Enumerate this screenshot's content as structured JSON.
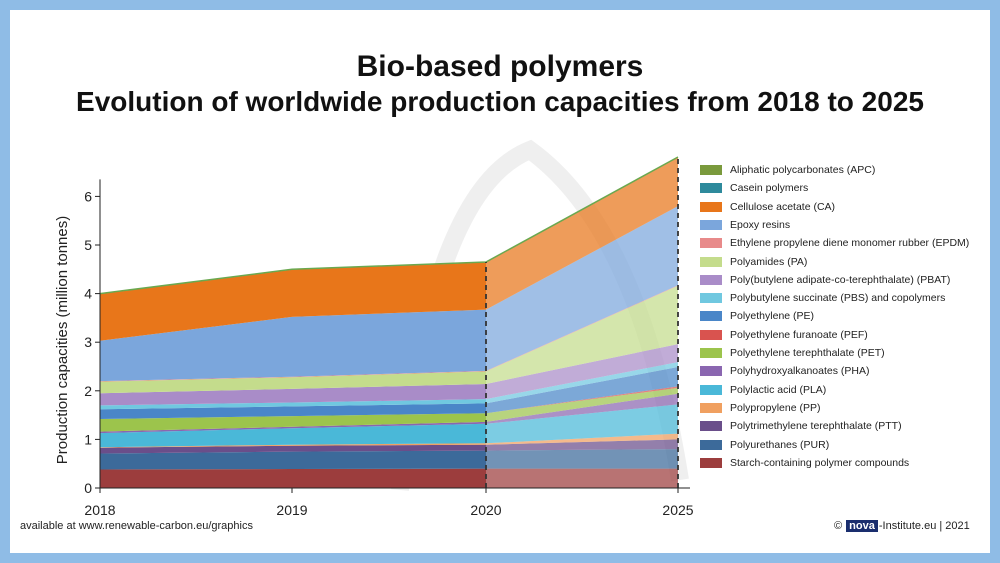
{
  "header": {
    "title": "Bio-based polymers",
    "subtitle": "Evolution of worldwide production capacities from 2018 to 2025"
  },
  "footer": {
    "source": "available at www.renewable-carbon.eu/graphics",
    "copyright_symbol": "©",
    "logo_text": "nova",
    "credit": "-Institute.eu | 2021"
  },
  "chart_data": {
    "type": "area",
    "title": "Bio-based polymers",
    "subtitle": "Evolution of worldwide production capacities from 2018 to 2025",
    "xlabel": "",
    "ylabel": "Production capacities (million tonnes)",
    "x": [
      "2018",
      "2019",
      "2020",
      "2025"
    ],
    "ylim": [
      0,
      6
    ],
    "yticks": [
      0,
      1,
      2,
      3,
      4,
      5,
      6
    ],
    "forecast_from": "2020",
    "series": [
      {
        "name": "Starch-containing polymer compounds",
        "color": "#9c3d3d",
        "values": [
          0.38,
          0.39,
          0.4,
          0.4
        ]
      },
      {
        "name": "Polyurethanes (PUR)",
        "color": "#3c6a9a",
        "values": [
          0.33,
          0.36,
          0.37,
          0.4
        ]
      },
      {
        "name": "Polytrimethylene terephthalate (PTT)",
        "color": "#6a4e8a",
        "values": [
          0.12,
          0.12,
          0.12,
          0.2
        ]
      },
      {
        "name": "Polypropylene (PP)",
        "color": "#f0a060",
        "values": [
          0.01,
          0.02,
          0.03,
          0.12
        ]
      },
      {
        "name": "Polylactic acid (PLA)",
        "color": "#4ab8d8",
        "values": [
          0.29,
          0.34,
          0.4,
          0.6
        ]
      },
      {
        "name": "Polyhydroxyalkanoates (PHA)",
        "color": "#8a66b0",
        "values": [
          0.03,
          0.03,
          0.04,
          0.22
        ]
      },
      {
        "name": "Polyethylene terephthalate (PET)",
        "color": "#9cc44c",
        "values": [
          0.26,
          0.22,
          0.18,
          0.12
        ]
      },
      {
        "name": "Polyethylene furanoate (PEF)",
        "color": "#d9534f",
        "values": [
          0.0,
          0.0,
          0.0,
          0.03
        ]
      },
      {
        "name": "Polyethylene (PE)",
        "color": "#4a86c8",
        "values": [
          0.2,
          0.2,
          0.2,
          0.4
        ]
      },
      {
        "name": "Polybutylene succinate (PBS) and copolymers",
        "color": "#70c8e0",
        "values": [
          0.08,
          0.08,
          0.09,
          0.1
        ]
      },
      {
        "name": "Poly(butylene adipate-co-terephthalate) (PBAT)",
        "color": "#a98cc8",
        "values": [
          0.25,
          0.28,
          0.31,
          0.37
        ]
      },
      {
        "name": "Polyamides (PA)",
        "color": "#c4dc8c",
        "values": [
          0.24,
          0.24,
          0.26,
          1.2
        ]
      },
      {
        "name": "Ethylene propylene diene monomer rubber (EPDM)",
        "color": "#e88a8a",
        "values": [
          0.01,
          0.01,
          0.01,
          0.01
        ]
      },
      {
        "name": "Epoxy resins",
        "color": "#7ba6dc",
        "values": [
          0.83,
          1.23,
          1.26,
          1.63
        ]
      },
      {
        "name": "Cellulose acetate (CA)",
        "color": "#e8761a",
        "values": [
          0.96,
          0.97,
          0.97,
          1.0
        ]
      },
      {
        "name": "Casein polymers",
        "color": "#2e8a9c",
        "values": [
          0.0,
          0.0,
          0.0,
          0.0
        ]
      },
      {
        "name": "Aliphatic polycarbonates (APC)",
        "color": "#7a9a3c",
        "values": [
          0.01,
          0.01,
          0.01,
          0.01
        ]
      }
    ]
  }
}
